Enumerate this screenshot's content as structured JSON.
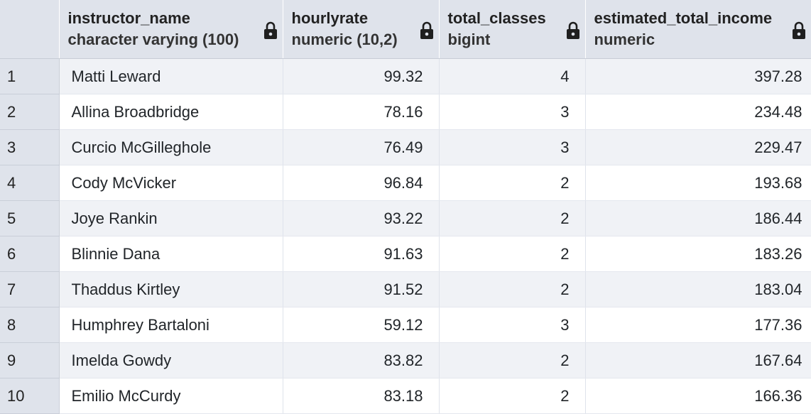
{
  "columns": [
    {
      "name": "instructor_name",
      "type": "character varying (100)"
    },
    {
      "name": "hourlyrate",
      "type": "numeric (10,2)"
    },
    {
      "name": "total_classes",
      "type": "bigint"
    },
    {
      "name": "estimated_total_income",
      "type": "numeric"
    }
  ],
  "rows": [
    {
      "num": "1",
      "instructor_name": "Matti Leward",
      "hourlyrate": "99.32",
      "total_classes": "4",
      "estimated_total_income": "397.28"
    },
    {
      "num": "2",
      "instructor_name": "Allina Broadbridge",
      "hourlyrate": "78.16",
      "total_classes": "3",
      "estimated_total_income": "234.48"
    },
    {
      "num": "3",
      "instructor_name": "Curcio McGilleghole",
      "hourlyrate": "76.49",
      "total_classes": "3",
      "estimated_total_income": "229.47"
    },
    {
      "num": "4",
      "instructor_name": "Cody McVicker",
      "hourlyrate": "96.84",
      "total_classes": "2",
      "estimated_total_income": "193.68"
    },
    {
      "num": "5",
      "instructor_name": "Joye Rankin",
      "hourlyrate": "93.22",
      "total_classes": "2",
      "estimated_total_income": "186.44"
    },
    {
      "num": "6",
      "instructor_name": "Blinnie Dana",
      "hourlyrate": "91.63",
      "total_classes": "2",
      "estimated_total_income": "183.26"
    },
    {
      "num": "7",
      "instructor_name": "Thaddus Kirtley",
      "hourlyrate": "91.52",
      "total_classes": "2",
      "estimated_total_income": "183.04"
    },
    {
      "num": "8",
      "instructor_name": "Humphrey Bartaloni",
      "hourlyrate": "59.12",
      "total_classes": "3",
      "estimated_total_income": "177.36"
    },
    {
      "num": "9",
      "instructor_name": "Imelda Gowdy",
      "hourlyrate": "83.82",
      "total_classes": "2",
      "estimated_total_income": "167.64"
    },
    {
      "num": "10",
      "instructor_name": "Emilio McCurdy",
      "hourlyrate": "83.18",
      "total_classes": "2",
      "estimated_total_income": "166.36"
    }
  ],
  "icons": {
    "column_lock": "lock-icon"
  },
  "colors": {
    "header_bg": "#dfe3eb",
    "row_odd_bg": "#f0f2f6",
    "row_even_bg": "#ffffff",
    "text": "#212529"
  }
}
